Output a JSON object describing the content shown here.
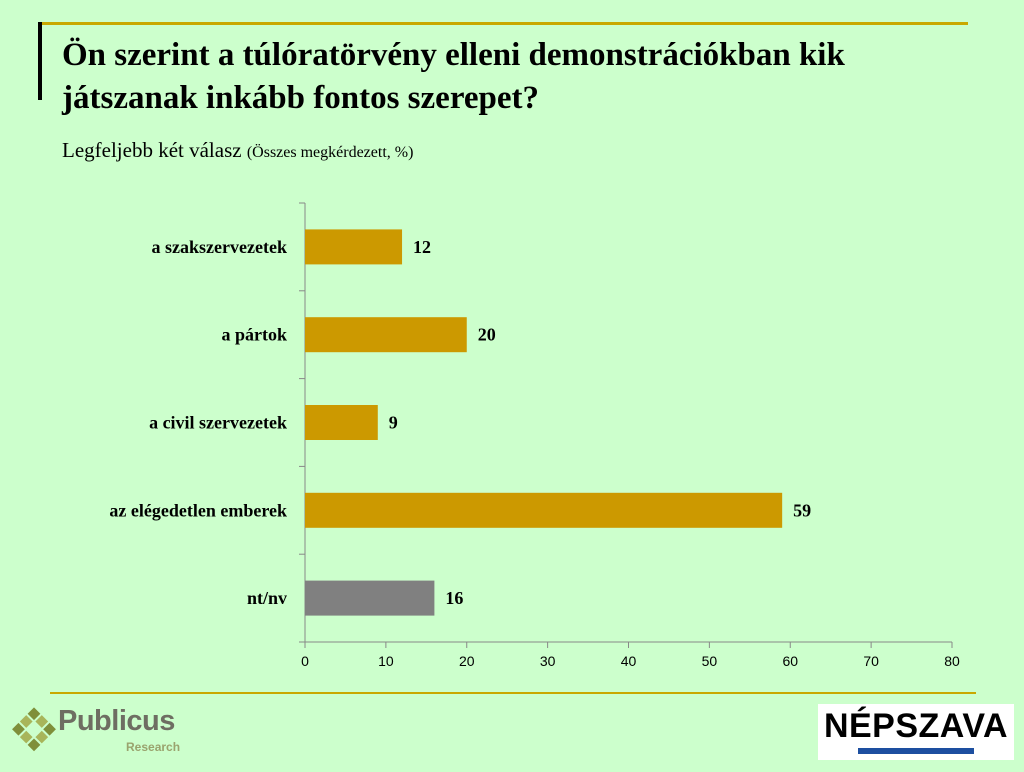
{
  "title": "Ön szerint a túlóratörvény elleni demonstrációkban kik játszanak inkább fontos szerepet?",
  "subtitle_main": "Legfeljebb két válasz",
  "subtitle_note": "(Összes megkérdezett, %)",
  "colors": {
    "background": "#ccffcc",
    "bar": "#cc9900",
    "bar_gray": "#808080",
    "accent_rule": "#c9a800"
  },
  "chart_data": {
    "type": "bar",
    "orientation": "horizontal",
    "categories": [
      "a szakszervezetek",
      "a pártok",
      "a civil szervezetek",
      "az elégedetlen emberek",
      "nt/nv"
    ],
    "values": [
      12,
      20,
      9,
      59,
      16
    ],
    "bar_colors": [
      "#cc9900",
      "#cc9900",
      "#cc9900",
      "#cc9900",
      "#808080"
    ],
    "data_labels": [
      "12",
      "20",
      "9",
      "59",
      "16"
    ],
    "xlim": [
      0,
      80
    ],
    "x_ticks": [
      0,
      10,
      20,
      30,
      40,
      50,
      60,
      70,
      80
    ],
    "grid": false,
    "legend": "none"
  },
  "logos": {
    "publicus": {
      "word": "Publicus",
      "sub": "Research"
    },
    "nepszava": {
      "word": "NÉPSZAVA"
    }
  }
}
